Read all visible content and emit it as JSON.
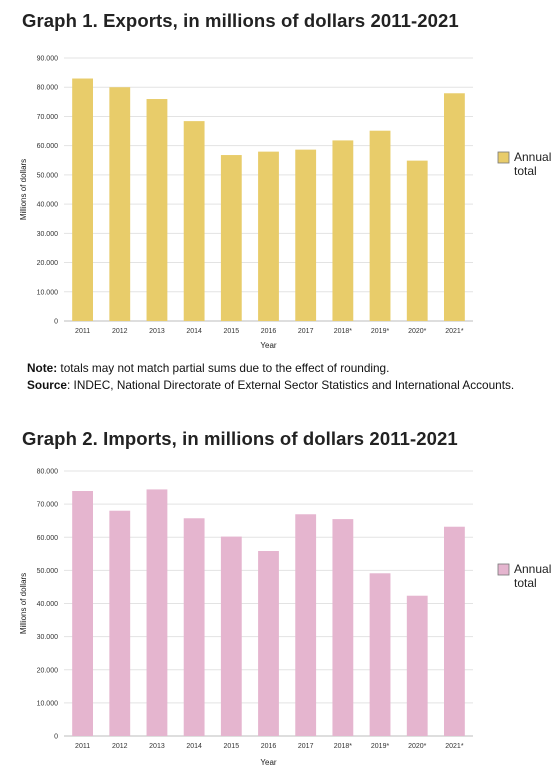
{
  "note": {
    "note_label": "Note:",
    "note_text": " totals may not match partial sums due to the effect of rounding.",
    "source_label": "Source",
    "source_text": ": INDEC, National Directorate of External Sector Statistics and International Accounts."
  },
  "colors": {
    "exports": "#e8cc6a",
    "imports": "#e5b5cf"
  },
  "chart_data": [
    {
      "type": "bar",
      "title": "Graph 1. Exports, in millions of dollars 2011-2021",
      "categories": [
        "2011",
        "2012",
        "2013",
        "2014",
        "2015",
        "2016",
        "2017",
        "2018*",
        "2019*",
        "2020*",
        "2021*"
      ],
      "series": [
        {
          "name": "Annual total",
          "values": [
            82980,
            80000,
            75960,
            68400,
            56790,
            57960,
            58640,
            61800,
            65120,
            54880,
            77930
          ]
        }
      ],
      "xlabel": "Year",
      "ylabel": "Millions of dollars",
      "ylim": [
        0,
        90000
      ],
      "yticks": [
        "0",
        "10.000",
        "20.000",
        "30.000",
        "40.000",
        "50.000",
        "60.000",
        "70.000",
        "80.000",
        "90.000"
      ],
      "legend": {
        "position": "right",
        "line1": "Annual",
        "line2": "total"
      },
      "grid": true
    },
    {
      "type": "bar",
      "title": "Graph 2. Imports, in millions of dollars 2011-2021",
      "categories": [
        "2011",
        "2012",
        "2013",
        "2014",
        "2015",
        "2016",
        "2017",
        "2018*",
        "2019*",
        "2020*",
        "2021*"
      ],
      "series": [
        {
          "name": "Annual total",
          "values": [
            73960,
            68010,
            74440,
            65730,
            60200,
            55850,
            66940,
            65480,
            49120,
            42350,
            63180
          ]
        }
      ],
      "xlabel": "Year",
      "ylabel": "Millions of dollars",
      "ylim": [
        0,
        80000
      ],
      "yticks": [
        "0",
        "10.000",
        "20.000",
        "30.000",
        "40.000",
        "50.000",
        "60.000",
        "70.000",
        "80.000"
      ],
      "legend": {
        "position": "right",
        "line1": "Annual",
        "line2": "total"
      },
      "grid": true
    }
  ]
}
